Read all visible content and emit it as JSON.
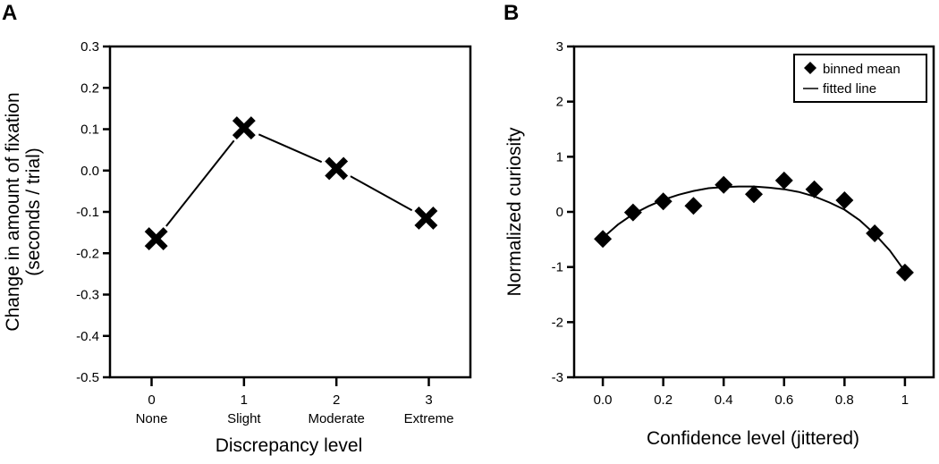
{
  "chart_data": [
    {
      "panel": "A",
      "type": "line",
      "title": "",
      "xlabel": "Discrepancy level",
      "ylabel": "Change in amount of fixation\n(seconds / trial)",
      "ylabel_lines": [
        "Change in amount of fixation",
        "(seconds / trial)"
      ],
      "ylim": [
        -0.5,
        0.3
      ],
      "xlim": [
        -0.45,
        3.45
      ],
      "yticks": [
        0.3,
        0.2,
        0.1,
        0.0,
        -0.1,
        -0.2,
        -0.3,
        -0.4,
        -0.5
      ],
      "ytick_labels": [
        "0.3",
        "0.2",
        "0.1",
        "0.0",
        "-0.1",
        "-0.2",
        "-0.3",
        "-0.4",
        "-0.5"
      ],
      "xticks": [
        0,
        1,
        2,
        3
      ],
      "xtick_labels": [
        "0",
        "1",
        "2",
        "3"
      ],
      "xtick_sublabels": [
        "None",
        "Slight",
        "Moderate",
        "Extreme"
      ],
      "marker": "x",
      "grid": false,
      "series": [
        {
          "name": "change",
          "x": [
            0.05,
            1.0,
            2.0,
            2.97
          ],
          "y": [
            -0.165,
            0.103,
            0.005,
            -0.115
          ]
        }
      ]
    },
    {
      "panel": "B",
      "type": "scatter",
      "title": "",
      "xlabel": "Confidence level (jittered)",
      "ylabel": "Normalized curiosity",
      "ylim": [
        -3,
        3
      ],
      "xlim": [
        -0.095,
        1.095
      ],
      "yticks": [
        3,
        2,
        1,
        0,
        -1,
        -2,
        -3
      ],
      "ytick_labels": [
        "3",
        "2",
        "1",
        "0",
        "-1",
        "-2",
        "-3"
      ],
      "xticks": [
        0.0,
        0.2,
        0.4,
        0.6,
        0.8,
        1.0
      ],
      "xtick_labels": [
        "0.0",
        "0.2",
        "0.4",
        "0.6",
        "0.8",
        "1"
      ],
      "grid": false,
      "legend": {
        "placement": "top-right",
        "entries": [
          "binned mean",
          "fitted line"
        ]
      },
      "series": [
        {
          "name": "binned mean",
          "marker": "diamond",
          "x": [
            0.0,
            0.1,
            0.2,
            0.3,
            0.4,
            0.5,
            0.6,
            0.7,
            0.8,
            0.9,
            1.0
          ],
          "y": [
            -0.49,
            -0.01,
            0.19,
            0.11,
            0.49,
            0.32,
            0.57,
            0.41,
            0.21,
            -0.39,
            -1.1
          ]
        },
        {
          "name": "fitted line",
          "type": "line",
          "x": [
            0.0,
            0.05,
            0.1,
            0.15,
            0.2,
            0.25,
            0.3,
            0.35,
            0.4,
            0.45,
            0.5,
            0.55,
            0.6,
            0.65,
            0.7,
            0.75,
            0.8,
            0.85,
            0.9,
            0.95,
            1.0
          ],
          "y": [
            -0.47,
            -0.23,
            -0.04,
            0.1,
            0.22,
            0.31,
            0.38,
            0.43,
            0.45,
            0.46,
            0.46,
            0.44,
            0.41,
            0.36,
            0.28,
            0.17,
            0.04,
            -0.15,
            -0.4,
            -0.7,
            -1.08
          ]
        }
      ]
    }
  ]
}
